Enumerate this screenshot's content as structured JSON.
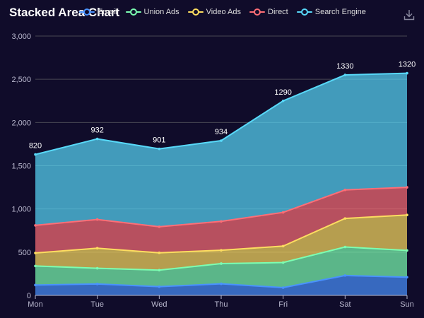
{
  "chart_data": {
    "type": "area",
    "title": "Stacked Area Chart",
    "stacked": true,
    "categories": [
      "Mon",
      "Tue",
      "Wed",
      "Thu",
      "Fri",
      "Sat",
      "Sun"
    ],
    "series": [
      {
        "name": "Email",
        "color": "#4992ff",
        "values": [
          120,
          132,
          101,
          134,
          90,
          230,
          210
        ]
      },
      {
        "name": "Union Ads",
        "color": "#7cffb2",
        "values": [
          220,
          182,
          191,
          234,
          290,
          330,
          310
        ]
      },
      {
        "name": "Video Ads",
        "color": "#fddd60",
        "values": [
          150,
          232,
          201,
          154,
          190,
          330,
          410
        ]
      },
      {
        "name": "Direct",
        "color": "#ff6e76",
        "values": [
          320,
          332,
          301,
          334,
          390,
          330,
          320
        ]
      },
      {
        "name": "Search Engine",
        "color": "#58d9f9",
        "values": [
          820,
          932,
          901,
          934,
          1290,
          1330,
          1320
        ]
      }
    ],
    "top_labels": [
      "820",
      "932",
      "901",
      "934",
      "1290",
      "1330",
      "1320"
    ],
    "yticks": [
      "0",
      "500",
      "1,000",
      "1,500",
      "2,000",
      "2,500",
      "3,000"
    ],
    "ylim": [
      0,
      3000
    ],
    "grid": true,
    "legend_position": "top"
  },
  "toolbox": {
    "download_icon": "download-icon"
  }
}
